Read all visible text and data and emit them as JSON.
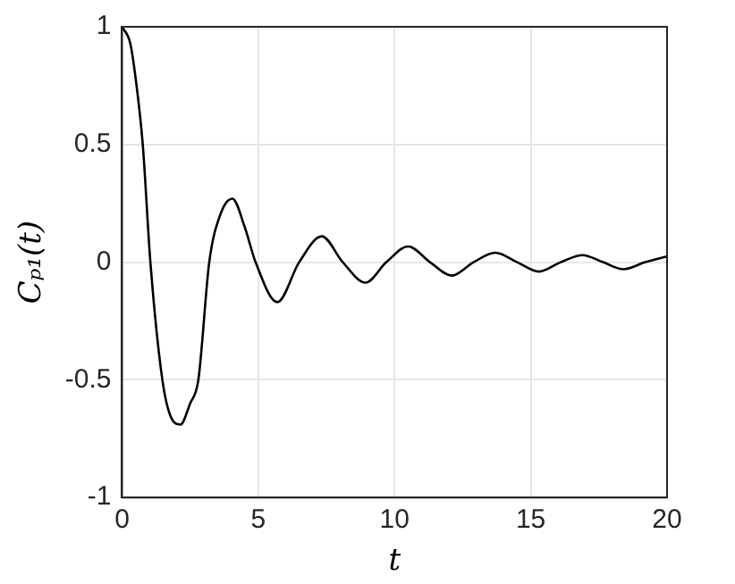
{
  "chart_data": {
    "type": "line",
    "xlabel": "t",
    "ylabel": "Cₚ₁(t)",
    "x": [
      0,
      0.3,
      0.5,
      0.76,
      1.04,
      1.48,
      1.8,
      2.14,
      2.5,
      2.8,
      3.2,
      3.6,
      4.05,
      4.5,
      4.9,
      5.7,
      6.5,
      7.33,
      8.1,
      8.93,
      9.7,
      10.5,
      11.3,
      12.1,
      12.9,
      13.7,
      14.5,
      15.3,
      16.1,
      16.9,
      17.65,
      18.4,
      19.2,
      20
    ],
    "series": [
      {
        "color": "#000000",
        "values": [
          1,
          0.93,
          0.78,
          0.5,
          0,
          -0.5,
          -0.66,
          -0.69,
          -0.6,
          -0.5,
          0,
          0.2,
          0.27,
          0.15,
          0,
          -0.17,
          0,
          0.11,
          0,
          -0.087,
          0,
          0.067,
          0,
          -0.057,
          0,
          0.04,
          0,
          -0.04,
          0,
          0.03,
          0,
          -0.03,
          0,
          0.024
        ]
      }
    ],
    "xlim": [
      0,
      20
    ],
    "xticks": [
      0,
      5,
      10,
      15,
      20
    ],
    "ylim": [
      -1,
      1
    ],
    "yticks": [
      -1,
      -0.5,
      0,
      0.5,
      1
    ],
    "grid": true,
    "legend": false,
    "marker": "none",
    "line_style": "solid"
  }
}
